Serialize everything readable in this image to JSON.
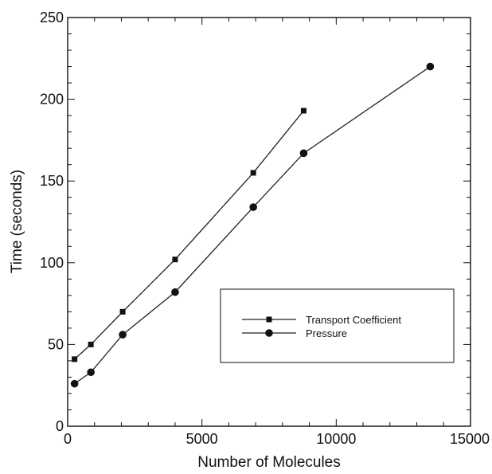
{
  "chart_data": {
    "type": "line",
    "title": "",
    "xlabel": "Number of Molecules",
    "ylabel": "Time  (seconds)",
    "xlim": [
      0,
      15000
    ],
    "ylim": [
      0,
      250
    ],
    "x_major_ticks": [
      0,
      5000,
      10000,
      15000
    ],
    "y_major_ticks": [
      0,
      50,
      100,
      150,
      200,
      250
    ],
    "x_minor_step": 1000,
    "y_minor_step": 10,
    "x_tick_labels": [
      "0",
      "5000",
      "10000",
      "15000"
    ],
    "y_tick_labels": [
      "0",
      "50",
      "100",
      "150",
      "200",
      "250"
    ],
    "grid": false,
    "legend_position": "lower-right",
    "series": [
      {
        "name": "Transport Coefficient",
        "marker": "square",
        "x": [
          256,
          864,
          2048,
          4000,
          6912,
          8788
        ],
        "y": [
          41,
          50,
          70,
          102,
          155,
          193
        ]
      },
      {
        "name": "Pressure",
        "marker": "circle",
        "x": [
          256,
          864,
          2048,
          4000,
          6912,
          8788,
          13500
        ],
        "y": [
          26,
          33,
          56,
          82,
          134,
          167,
          220
        ]
      }
    ]
  }
}
